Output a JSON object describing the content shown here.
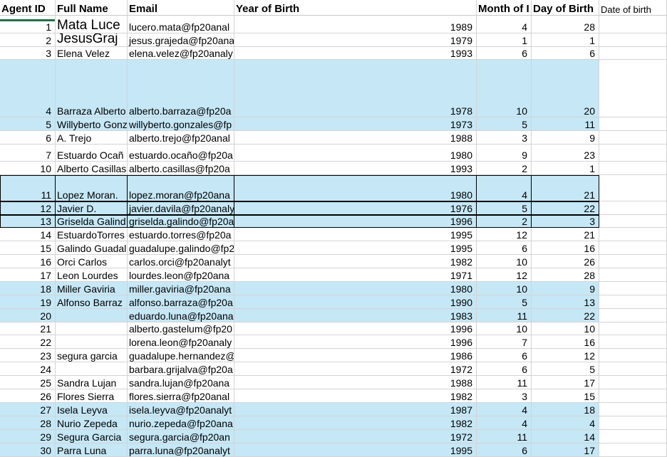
{
  "headers": [
    "Agent ID",
    "Full Name",
    "Email",
    "Year of Birth",
    "Month of I",
    "Day of Birth",
    "Date of  birth"
  ],
  "rows": [
    {
      "id": "1",
      "name": "Mata Luce",
      "email": "lucero.mata@fp20anal",
      "year": "1989",
      "month": "4",
      "day": "28"
    },
    {
      "id": "2",
      "name": "JesusGraj",
      "email": "jesus.grajeda@fp20ana",
      "year": "1979",
      "month": "1",
      "day": "1"
    },
    {
      "id": "3",
      "name": "Elena Velez",
      "email": "elena.velez@fp20analy",
      "year": "1993",
      "month": "6",
      "day": "6"
    },
    {
      "id": "4",
      "name": "Barraza Alberto",
      "email": "alberto.barraza@fp20a",
      "year": "1978",
      "month": "10",
      "day": "20"
    },
    {
      "id": "5",
      "name": "Willyberto Gonz",
      "email": "willyberto.gonzales@fp",
      "year": "1973",
      "month": "5",
      "day": "11"
    },
    {
      "id": "6",
      "name": "A. Trejo",
      "email": "alberto.trejo@fp20anal",
      "year": "1988",
      "month": "3",
      "day": "9"
    },
    {
      "id": "7",
      "name": "Estuardo Ocañ",
      "email": "estuardo.ocaño@fp20a",
      "year": "1980",
      "month": "9",
      "day": "23"
    },
    {
      "id": "10",
      "name": "Alberto Casillas",
      "email": "alberto.casillas@fp20a",
      "year": "1993",
      "month": "2",
      "day": "1"
    },
    {
      "id": "11",
      "name": "Lopez Moran.",
      "email": "lopez.moran@fp20ana",
      "year": "1980",
      "month": "4",
      "day": "21"
    },
    {
      "id": "12",
      "name": "Javier D.",
      "email": "javier.davila@fp20analy",
      "year": "1976",
      "month": "5",
      "day": "22"
    },
    {
      "id": "13",
      "name": "Griselda Galind",
      "email": "griselda.galindo@fp20a",
      "year": "1996",
      "month": "2",
      "day": "3"
    },
    {
      "id": "14",
      "name": "EstuardoTorres",
      "email": "estuardo.torres@fp20a",
      "year": "1995",
      "month": "12",
      "day": "21"
    },
    {
      "id": "15",
      "name": "Galindo Guadal",
      "email": "guadalupe.galindo@fp2",
      "year": "1995",
      "month": "6",
      "day": "16"
    },
    {
      "id": "16",
      "name": "Orci Carlos",
      "email": "carlos.orci@fp20analyt",
      "year": "1982",
      "month": "10",
      "day": "26"
    },
    {
      "id": "17",
      "name": "Leon Lourdes",
      "email": "lourdes.leon@fp20ana",
      "year": "1971",
      "month": "12",
      "day": "28"
    },
    {
      "id": "18",
      "name": "Miller Gaviria",
      "email": "miller.gaviria@fp20ana",
      "year": "1980",
      "month": "10",
      "day": "9"
    },
    {
      "id": "19",
      "name": "Alfonso Barraz",
      "email": "alfonso.barraza@fp20a",
      "year": "1990",
      "month": "5",
      "day": "13"
    },
    {
      "id": "20",
      "name": "",
      "email": "eduardo.luna@fp20ana",
      "year": "1983",
      "month": "11",
      "day": "22"
    },
    {
      "id": "21",
      "name": "",
      "email": "alberto.gastelum@fp20",
      "year": "1996",
      "month": "10",
      "day": "10"
    },
    {
      "id": "22",
      "name": "",
      "email": "lorena.leon@fp20analy",
      "year": "1996",
      "month": "7",
      "day": "16"
    },
    {
      "id": "23",
      "name": "segura garcia",
      "email": "guadalupe.hernandez@",
      "year": "1986",
      "month": "6",
      "day": "12"
    },
    {
      "id": "24",
      "name": "",
      "email": "barbara.grijalva@fp20a",
      "year": "1972",
      "month": "6",
      "day": "5"
    },
    {
      "id": "25",
      "name": "Sandra Lujan",
      "email": "sandra.lujan@fp20ana",
      "year": "1988",
      "month": "11",
      "day": "17"
    },
    {
      "id": "26",
      "name": "Flores Sierra",
      "email": "flores.sierra@fp20anal",
      "year": "1982",
      "month": "3",
      "day": "15"
    },
    {
      "id": "27",
      "name": "Isela Leyva",
      "email": "isela.leyva@fp20analyt",
      "year": "1987",
      "month": "4",
      "day": "18"
    },
    {
      "id": "28",
      "name": "Nurio Zepeda",
      "email": "nurio.zepeda@fp20ana",
      "year": "1982",
      "month": "4",
      "day": "4"
    },
    {
      "id": "29",
      "name": "Segura Garcia",
      "email": "segura.garcia@fp20an",
      "year": "1972",
      "month": "11",
      "day": "14"
    },
    {
      "id": "30",
      "name": "Parra Luna",
      "email": "parra.luna@fp20analyt",
      "year": "1995",
      "month": "6",
      "day": "17"
    }
  ],
  "colors": {
    "row_highlight": "#c5e7f6",
    "selection_accent": "#217346",
    "gridline": "#d4d4d4"
  }
}
